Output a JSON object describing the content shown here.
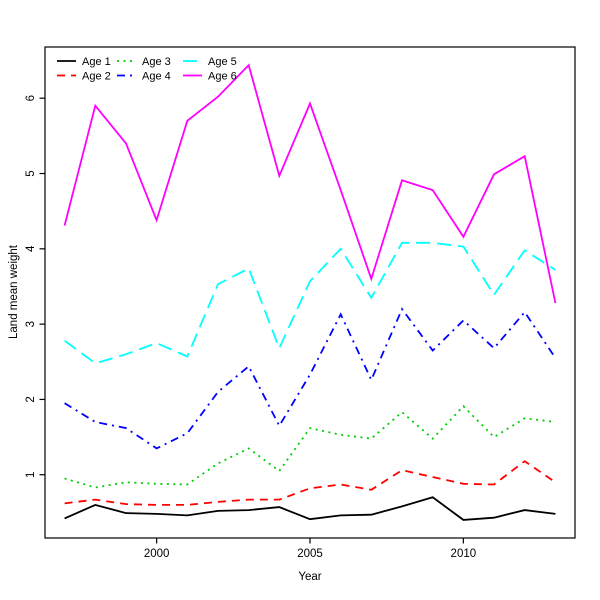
{
  "chart_data": {
    "type": "line",
    "title": "",
    "xlabel": "Year",
    "ylabel": "Land mean weight",
    "grid": false,
    "legend_position": "top-left",
    "legend_columns": 3,
    "xlim": [
      1996.36,
      2013.64
    ],
    "ylim": [
      0.16,
      6.68
    ],
    "x_ticks": [
      2000,
      2005,
      2010
    ],
    "y_ticks": [
      1,
      2,
      3,
      4,
      5,
      6
    ],
    "x": [
      1997,
      1998,
      1999,
      2000,
      2001,
      2002,
      2003,
      2004,
      2005,
      2006,
      2007,
      2008,
      2009,
      2010,
      2011,
      2012,
      2013
    ],
    "series": [
      {
        "name": "Age 1",
        "color": "#000000",
        "dash": "solid",
        "values": [
          0.42,
          0.6,
          0.49,
          0.48,
          0.46,
          0.52,
          0.53,
          0.57,
          0.41,
          0.46,
          0.47,
          0.58,
          0.7,
          0.4,
          0.43,
          0.53,
          0.48
        ]
      },
      {
        "name": "Age 2",
        "color": "#ff0000",
        "dash": "dashed",
        "values": [
          0.62,
          0.67,
          0.61,
          0.6,
          0.6,
          0.64,
          0.67,
          0.67,
          0.82,
          0.87,
          0.8,
          1.06,
          0.97,
          0.88,
          0.87,
          1.18,
          0.9
        ]
      },
      {
        "name": "Age 3",
        "color": "#00cd00",
        "dash": "dotted",
        "values": [
          0.95,
          0.83,
          0.9,
          0.88,
          0.87,
          1.15,
          1.35,
          1.05,
          1.62,
          1.53,
          1.48,
          1.83,
          1.48,
          1.91,
          1.5,
          1.75,
          1.7
        ]
      },
      {
        "name": "Age 4",
        "color": "#0000ff",
        "dash": "dashdot",
        "values": [
          1.95,
          1.7,
          1.62,
          1.35,
          1.55,
          2.1,
          2.44,
          1.65,
          2.33,
          3.13,
          2.26,
          3.2,
          2.65,
          3.05,
          2.68,
          3.16,
          2.55
        ]
      },
      {
        "name": "Age 5",
        "color": "#00ffff",
        "dash": "longdash",
        "values": [
          2.78,
          2.48,
          2.6,
          2.75,
          2.57,
          3.53,
          3.74,
          2.68,
          3.57,
          4.0,
          3.35,
          4.08,
          4.08,
          4.03,
          3.39,
          3.98,
          3.72
        ]
      },
      {
        "name": "Age 6",
        "color": "#ff00ff",
        "dash": "solid",
        "values": [
          4.31,
          5.9,
          5.4,
          4.38,
          5.7,
          6.02,
          6.44,
          4.97,
          5.93,
          4.78,
          3.6,
          4.91,
          4.78,
          4.16,
          4.99,
          5.23,
          3.28
        ]
      }
    ]
  }
}
